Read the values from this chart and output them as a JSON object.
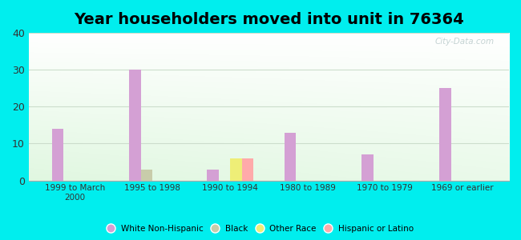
{
  "title": "Year householders moved into unit in 76364",
  "categories": [
    "1999 to March\n2000",
    "1995 to 1998",
    "1990 to 1994",
    "1980 to 1989",
    "1970 to 1979",
    "1969 or earlier"
  ],
  "series": {
    "White Non-Hispanic": [
      14,
      30,
      3,
      13,
      7,
      25
    ],
    "Black": [
      0,
      3,
      0,
      0,
      0,
      0
    ],
    "Other Race": [
      0,
      0,
      6,
      0,
      0,
      0
    ],
    "Hispanic or Latino": [
      0,
      0,
      6,
      0,
      0,
      0
    ]
  },
  "colors": {
    "White Non-Hispanic": "#d4a0d4",
    "Black": "#c8ccaa",
    "Other Race": "#eeee77",
    "Hispanic or Latino": "#ffaaaa"
  },
  "ylim": [
    0,
    40
  ],
  "yticks": [
    0,
    10,
    20,
    30,
    40
  ],
  "background_outer": "#00eeee",
  "watermark": "City-Data.com",
  "bar_width": 0.15,
  "title_fontsize": 14,
  "grid_color": "#ccddcc"
}
